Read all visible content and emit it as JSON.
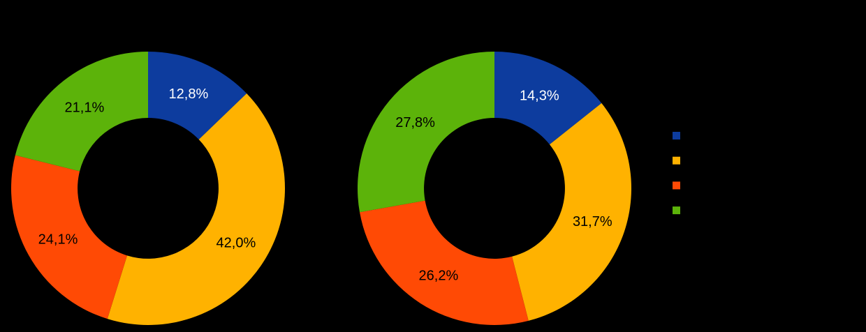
{
  "background_color": "#000000",
  "chart_data": [
    {
      "type": "pie",
      "subtype": "donut",
      "position": "left",
      "title": "",
      "start_angle_deg": 0,
      "clockwise": true,
      "inner_radius_ratio": 0.515,
      "label_format": "percent-comma-decimal",
      "slices": [
        {
          "value": 12.8,
          "label": "12,8%",
          "color": "#0D3C9E",
          "label_color": "#FFFFFF"
        },
        {
          "value": 42.0,
          "label": "42,0%",
          "color": "#FFB200",
          "label_color": "#000000"
        },
        {
          "value": 24.1,
          "label": "24,1%",
          "color": "#FF4A05",
          "label_color": "#000000"
        },
        {
          "value": 21.1,
          "label": "21,1%",
          "color": "#5CB30A",
          "label_color": "#000000"
        }
      ]
    },
    {
      "type": "pie",
      "subtype": "donut",
      "position": "right",
      "title": "",
      "start_angle_deg": 0,
      "clockwise": true,
      "inner_radius_ratio": 0.515,
      "label_format": "percent-comma-decimal",
      "slices": [
        {
          "value": 14.3,
          "label": "14,3%",
          "color": "#0D3C9E",
          "label_color": "#FFFFFF"
        },
        {
          "value": 31.7,
          "label": "31,7%",
          "color": "#FFB200",
          "label_color": "#000000"
        },
        {
          "value": 26.2,
          "label": "26,2%",
          "color": "#FF4A05",
          "label_color": "#000000"
        },
        {
          "value": 27.8,
          "label": "27,8%",
          "color": "#5CB30A",
          "label_color": "#000000"
        }
      ]
    }
  ],
  "legend": {
    "position": "right",
    "labels_visible": false,
    "swatches": [
      {
        "color": "#0D3C9E"
      },
      {
        "color": "#FFB200"
      },
      {
        "color": "#FF4A05"
      },
      {
        "color": "#5CB30A"
      }
    ]
  }
}
